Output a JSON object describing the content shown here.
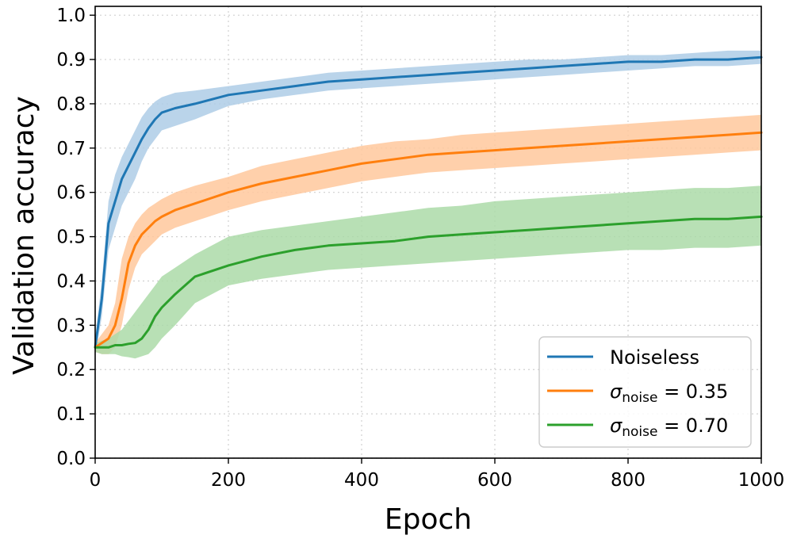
{
  "chart_data": {
    "type": "line",
    "title": "",
    "xlabel": "Epoch",
    "ylabel": "Validation accuracy",
    "xlim": [
      0,
      1000
    ],
    "ylim": [
      0.0,
      1.02
    ],
    "x_ticks": [
      "0",
      "200",
      "400",
      "600",
      "800",
      "1000"
    ],
    "y_ticks": [
      "0.0",
      "0.1",
      "0.2",
      "0.3",
      "0.4",
      "0.5",
      "0.6",
      "0.7",
      "0.8",
      "0.9",
      "1.0"
    ],
    "grid": true,
    "legend_position": "bottom-right",
    "x": [
      0,
      10,
      20,
      30,
      40,
      50,
      60,
      70,
      80,
      90,
      100,
      120,
      150,
      200,
      250,
      300,
      350,
      400,
      450,
      500,
      550,
      600,
      650,
      700,
      750,
      800,
      850,
      900,
      950,
      1000
    ],
    "series": [
      {
        "name": "Noiseless",
        "label_main": "Noiseless",
        "label_sub": "",
        "label_suffix": "",
        "color": "#1f77b4",
        "band_color": "#aecde6",
        "values": [
          0.25,
          0.36,
          0.53,
          0.58,
          0.63,
          0.66,
          0.69,
          0.72,
          0.745,
          0.765,
          0.78,
          0.79,
          0.8,
          0.82,
          0.83,
          0.84,
          0.85,
          0.855,
          0.86,
          0.865,
          0.87,
          0.875,
          0.88,
          0.885,
          0.89,
          0.895,
          0.895,
          0.9,
          0.9,
          0.905
        ],
        "upper": [
          0.27,
          0.4,
          0.58,
          0.64,
          0.68,
          0.71,
          0.74,
          0.77,
          0.79,
          0.805,
          0.815,
          0.825,
          0.83,
          0.84,
          0.85,
          0.86,
          0.87,
          0.875,
          0.88,
          0.885,
          0.89,
          0.895,
          0.9,
          0.9,
          0.905,
          0.91,
          0.91,
          0.915,
          0.92,
          0.92
        ],
        "lower": [
          0.23,
          0.32,
          0.47,
          0.52,
          0.57,
          0.6,
          0.63,
          0.67,
          0.7,
          0.72,
          0.74,
          0.75,
          0.765,
          0.795,
          0.81,
          0.82,
          0.83,
          0.835,
          0.84,
          0.845,
          0.85,
          0.855,
          0.86,
          0.865,
          0.87,
          0.875,
          0.88,
          0.885,
          0.885,
          0.89
        ]
      },
      {
        "name": "σnoise = 0.35",
        "label_main": "σ",
        "label_sub": "noise",
        "label_suffix": " = 0.35",
        "color": "#ff7f0e",
        "band_color": "#ffc89c",
        "values": [
          0.25,
          0.26,
          0.27,
          0.3,
          0.36,
          0.44,
          0.48,
          0.505,
          0.52,
          0.535,
          0.545,
          0.56,
          0.575,
          0.6,
          0.62,
          0.635,
          0.65,
          0.665,
          0.675,
          0.685,
          0.69,
          0.695,
          0.7,
          0.705,
          0.71,
          0.715,
          0.72,
          0.725,
          0.73,
          0.735
        ],
        "upper": [
          0.26,
          0.28,
          0.3,
          0.35,
          0.45,
          0.5,
          0.53,
          0.55,
          0.565,
          0.575,
          0.585,
          0.6,
          0.615,
          0.635,
          0.66,
          0.675,
          0.69,
          0.705,
          0.715,
          0.72,
          0.73,
          0.735,
          0.74,
          0.745,
          0.75,
          0.755,
          0.76,
          0.765,
          0.77,
          0.775
        ],
        "lower": [
          0.24,
          0.235,
          0.235,
          0.25,
          0.3,
          0.38,
          0.43,
          0.46,
          0.475,
          0.49,
          0.505,
          0.52,
          0.535,
          0.56,
          0.58,
          0.595,
          0.61,
          0.625,
          0.635,
          0.645,
          0.65,
          0.655,
          0.66,
          0.665,
          0.67,
          0.675,
          0.68,
          0.685,
          0.69,
          0.695
        ]
      },
      {
        "name": "σnoise = 0.70",
        "label_main": "σ",
        "label_sub": "noise",
        "label_suffix": " = 0.70",
        "color": "#2ca02c",
        "band_color": "#abdaa8",
        "values": [
          0.25,
          0.25,
          0.25,
          0.255,
          0.255,
          0.258,
          0.26,
          0.27,
          0.29,
          0.32,
          0.34,
          0.37,
          0.41,
          0.435,
          0.455,
          0.47,
          0.48,
          0.485,
          0.49,
          0.5,
          0.505,
          0.51,
          0.515,
          0.52,
          0.525,
          0.53,
          0.535,
          0.54,
          0.54,
          0.545
        ],
        "upper": [
          0.26,
          0.265,
          0.27,
          0.28,
          0.29,
          0.31,
          0.33,
          0.35,
          0.37,
          0.39,
          0.41,
          0.43,
          0.46,
          0.5,
          0.515,
          0.525,
          0.535,
          0.545,
          0.555,
          0.565,
          0.57,
          0.58,
          0.585,
          0.59,
          0.595,
          0.6,
          0.605,
          0.61,
          0.61,
          0.615
        ],
        "lower": [
          0.24,
          0.235,
          0.235,
          0.235,
          0.23,
          0.228,
          0.225,
          0.23,
          0.235,
          0.25,
          0.27,
          0.3,
          0.35,
          0.39,
          0.405,
          0.415,
          0.425,
          0.43,
          0.435,
          0.44,
          0.445,
          0.45,
          0.455,
          0.46,
          0.465,
          0.47,
          0.47,
          0.475,
          0.475,
          0.48
        ]
      }
    ]
  }
}
